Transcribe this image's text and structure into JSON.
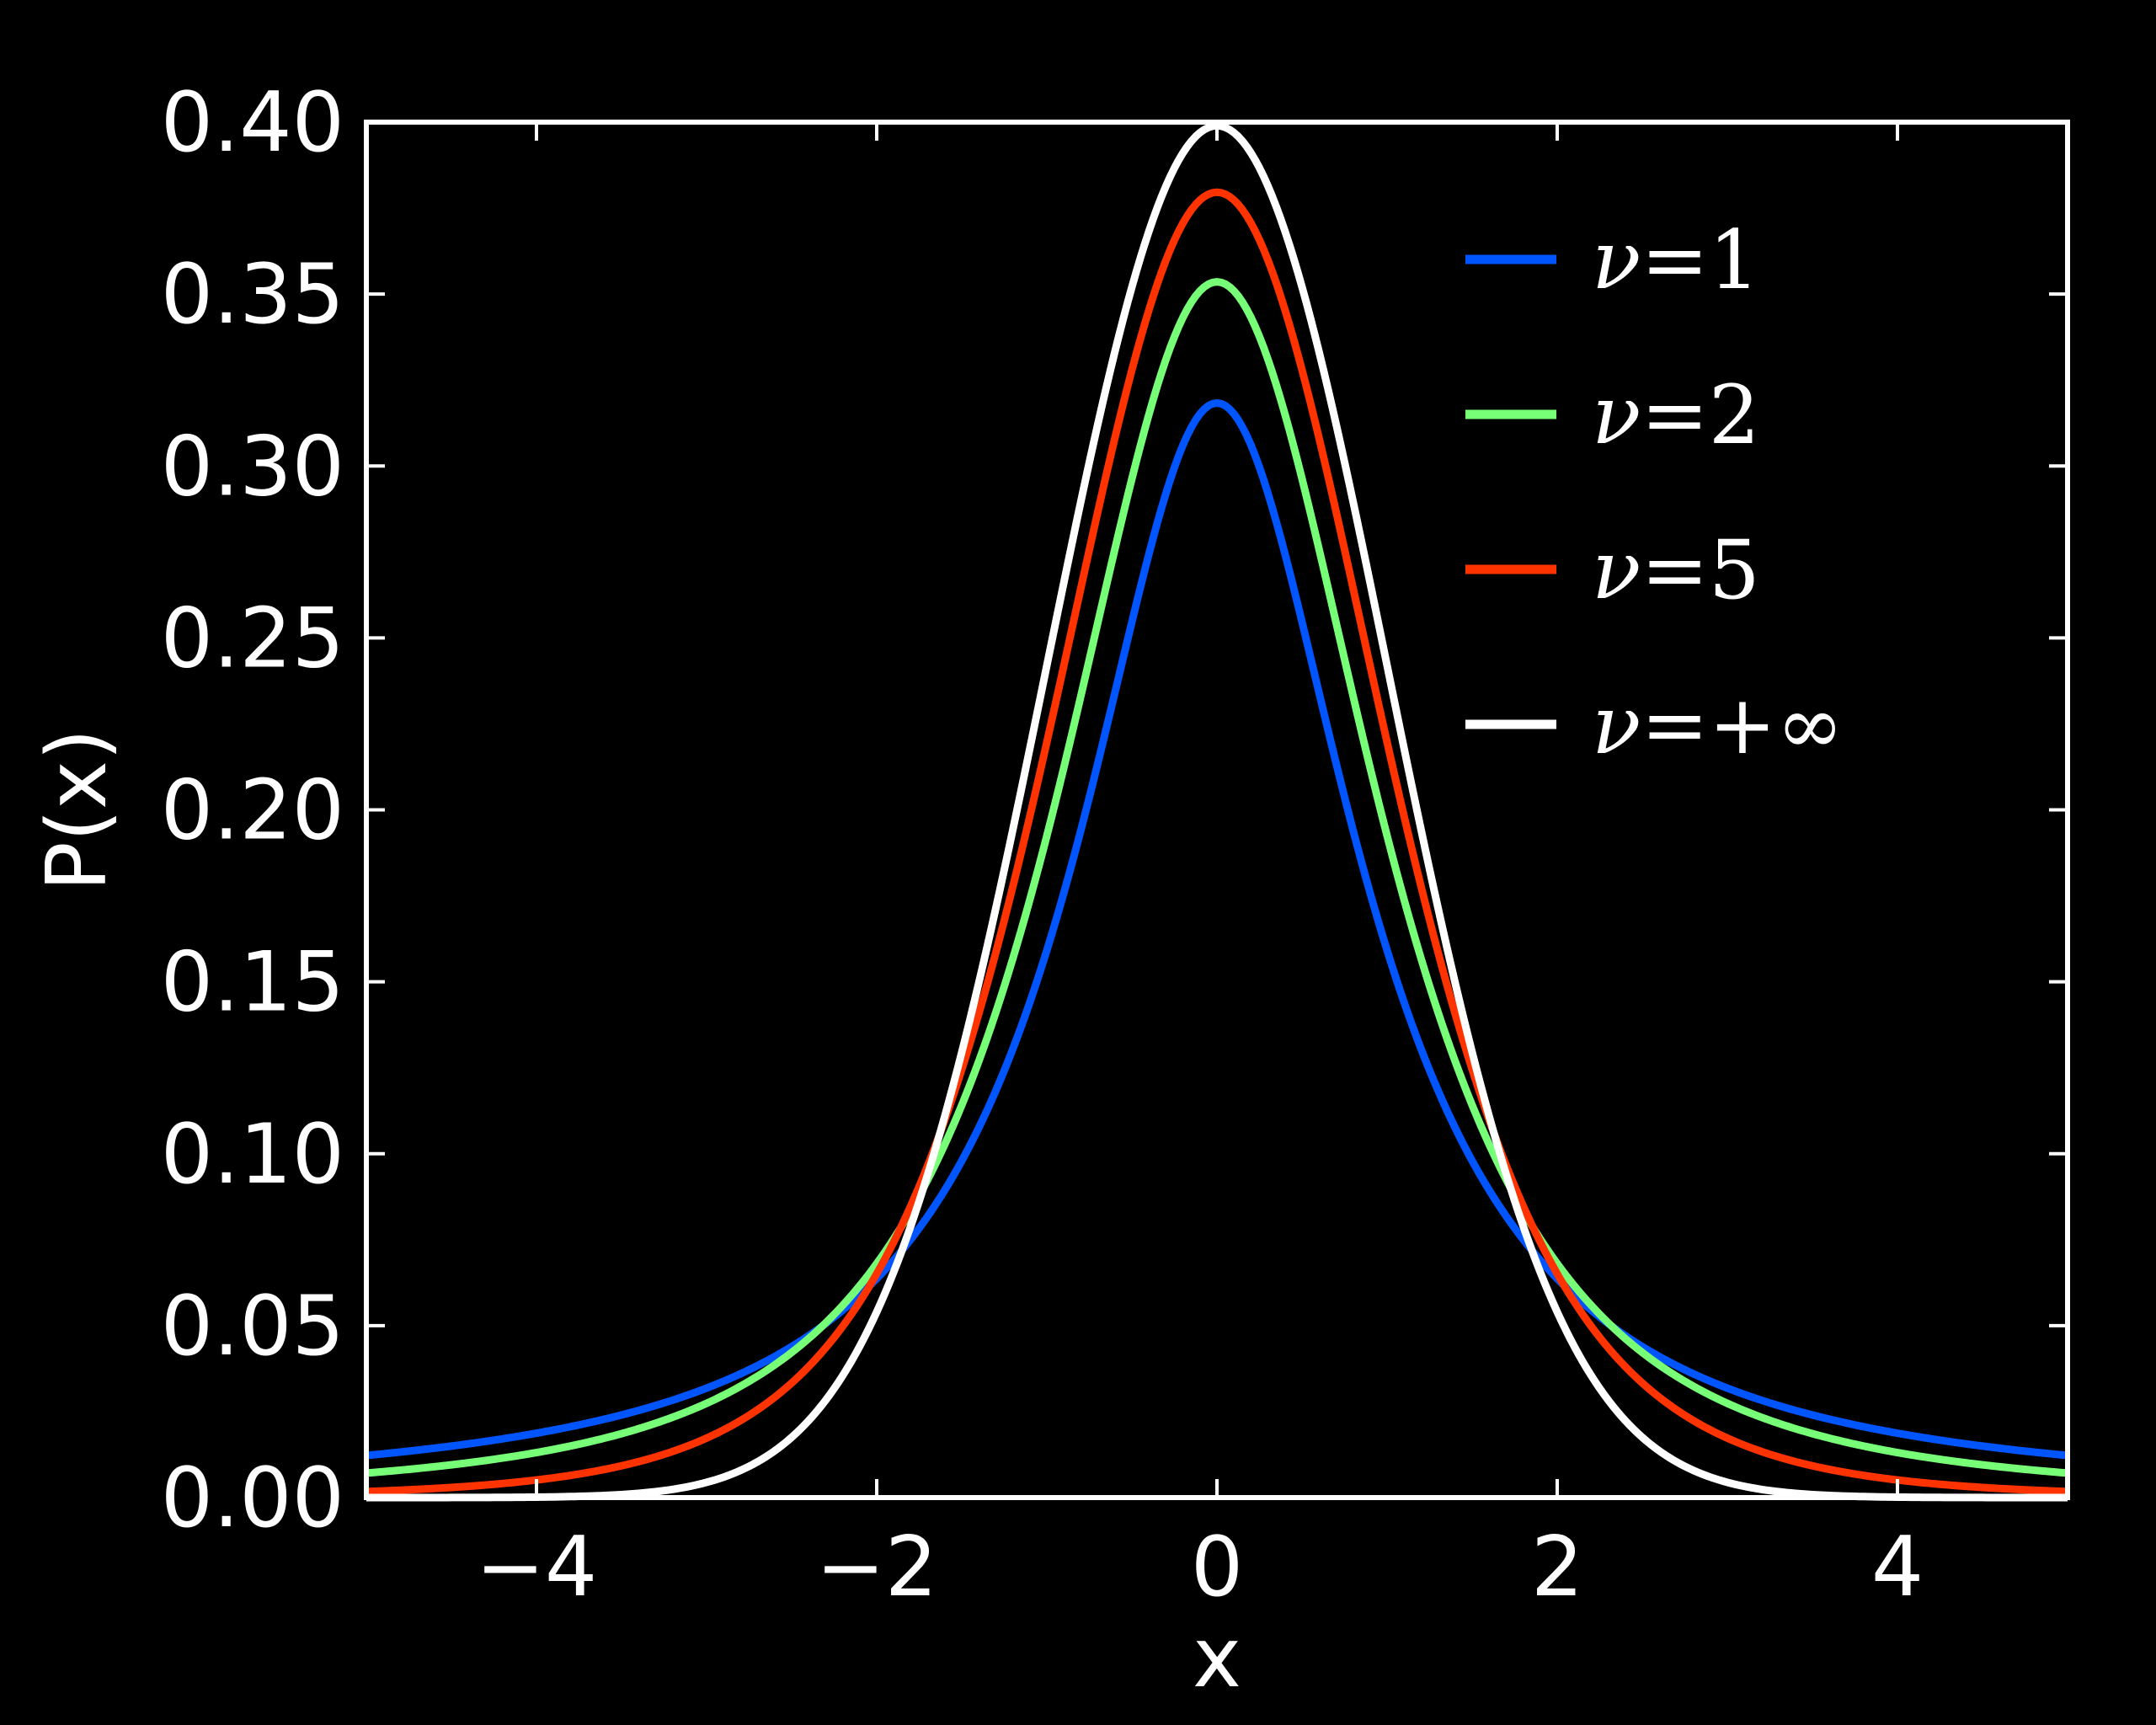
{
  "chart_data": {
    "type": "line",
    "title": "",
    "xlabel": "x",
    "ylabel": "P(x)",
    "xlim": [
      -5,
      5
    ],
    "ylim": [
      0.0,
      0.4
    ],
    "xticks": [
      -4,
      -2,
      0,
      2,
      4
    ],
    "xtick_labels": [
      "−4",
      "−2",
      "0",
      "2",
      "4"
    ],
    "yticks": [
      0.0,
      0.05,
      0.1,
      0.15,
      0.2,
      0.25,
      0.3,
      0.35,
      0.4
    ],
    "ytick_labels": [
      "0.00",
      "0.05",
      "0.10",
      "0.15",
      "0.20",
      "0.25",
      "0.30",
      "0.35",
      "0.40"
    ],
    "grid": false,
    "legend_position": "top-right",
    "series": [
      {
        "name": "ν=1",
        "nu_label": "ν",
        "eq_label": "=1",
        "color": "#0055ff",
        "dof": 1,
        "x": [
          -5,
          -4,
          -3,
          -2,
          -1.5,
          -1,
          -0.5,
          0,
          0.5,
          1,
          1.5,
          2,
          3,
          4,
          5
        ],
        "y": [
          0.012,
          0.019,
          0.032,
          0.064,
          0.098,
          0.159,
          0.255,
          0.318,
          0.255,
          0.159,
          0.098,
          0.064,
          0.032,
          0.019,
          0.012
        ]
      },
      {
        "name": "ν=2",
        "nu_label": "ν",
        "eq_label": "=2",
        "color": "#77ff77",
        "dof": 2,
        "x": [
          -5,
          -4,
          -3,
          -2,
          -1.5,
          -1,
          -0.5,
          0,
          0.5,
          1,
          1.5,
          2,
          3,
          4,
          5
        ],
        "y": [
          0.007,
          0.013,
          0.027,
          0.068,
          0.114,
          0.192,
          0.299,
          0.354,
          0.299,
          0.192,
          0.114,
          0.068,
          0.027,
          0.013,
          0.007
        ]
      },
      {
        "name": "ν=5",
        "nu_label": "ν",
        "eq_label": "=5",
        "color": "#ff3300",
        "dof": 5,
        "x": [
          -5,
          -4,
          -3,
          -2,
          -1.5,
          -1,
          -0.5,
          0,
          0.5,
          1,
          1.5,
          2,
          3,
          4,
          5
        ],
        "y": [
          0.002,
          0.005,
          0.017,
          0.065,
          0.124,
          0.22,
          0.33,
          0.38,
          0.33,
          0.22,
          0.124,
          0.065,
          0.017,
          0.005,
          0.002
        ]
      },
      {
        "name": "ν=+∞",
        "nu_label": "ν",
        "eq_label": "=+∞",
        "color": "#ffffff",
        "dof": "inf",
        "x": [
          -5,
          -4,
          -3,
          -2,
          -1.5,
          -1,
          -0.5,
          0,
          0.5,
          1,
          1.5,
          2,
          3,
          4,
          5
        ],
        "y": [
          1.5e-06,
          0.0001,
          0.004,
          0.054,
          0.13,
          0.242,
          0.352,
          0.399,
          0.352,
          0.242,
          0.13,
          0.054,
          0.004,
          0.0001,
          1.5e-06
        ]
      }
    ]
  }
}
